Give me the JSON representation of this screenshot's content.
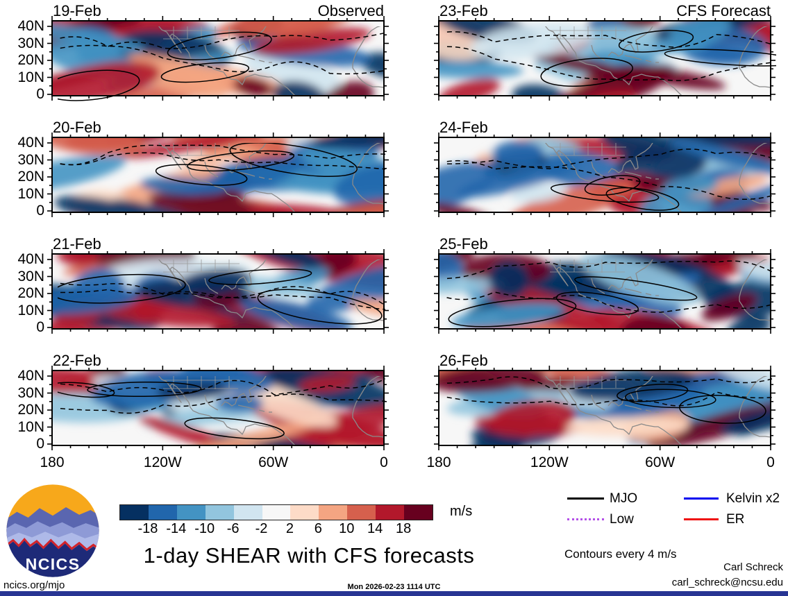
{
  "figure": {
    "panels": [
      {
        "date": "19-Feb",
        "source": "Observed"
      },
      {
        "date": "20-Feb",
        "source": "Observed"
      },
      {
        "date": "21-Feb",
        "source": "Observed"
      },
      {
        "date": "22-Feb",
        "source": "Observed"
      },
      {
        "date": "23-Feb",
        "source": "CFS Forecast"
      },
      {
        "date": "24-Feb",
        "source": "CFS Forecast"
      },
      {
        "date": "25-Feb",
        "source": "CFS Forecast"
      },
      {
        "date": "26-Feb",
        "source": "CFS Forecast"
      }
    ],
    "column_labels": {
      "observed": "Observed",
      "forecast": "CFS Forecast"
    },
    "y_tick_labels": [
      "40N",
      "30N",
      "20N",
      "10N",
      "0"
    ],
    "x_tick_labels": [
      "180",
      "120W",
      "60W",
      "0"
    ]
  },
  "chart_data": {
    "type": "heatmap",
    "title": "1-day SHEAR with CFS forecasts",
    "panel_grid": {
      "rows": 4,
      "cols": 2,
      "left_column": "Observed",
      "right_column": "CFS Forecast"
    },
    "panels": [
      {
        "date": "19-Feb",
        "source": "Observed"
      },
      {
        "date": "20-Feb",
        "source": "Observed"
      },
      {
        "date": "21-Feb",
        "source": "Observed"
      },
      {
        "date": "22-Feb",
        "source": "Observed"
      },
      {
        "date": "23-Feb",
        "source": "CFS Forecast"
      },
      {
        "date": "24-Feb",
        "source": "CFS Forecast"
      },
      {
        "date": "25-Feb",
        "source": "CFS Forecast"
      },
      {
        "date": "26-Feb",
        "source": "CFS Forecast"
      }
    ],
    "x_axis": {
      "tick_labels": [
        "180",
        "120W",
        "60W",
        "0"
      ],
      "range": [
        180,
        0
      ]
    },
    "y_axis": {
      "tick_labels": [
        "40N",
        "30N",
        "20N",
        "10N",
        "0"
      ],
      "range": [
        0,
        40
      ]
    },
    "colorbar": {
      "units": "m/s",
      "tick_labels": [
        -18,
        -14,
        -10,
        -6,
        -2,
        2,
        6,
        10,
        14,
        18
      ],
      "colors": [
        "#053061",
        "#2166ac",
        "#4393c3",
        "#92c5de",
        "#d1e5f0",
        "#f7f7f7",
        "#fddbc7",
        "#f4a582",
        "#d6604d",
        "#b2182b",
        "#67001f"
      ]
    },
    "contour_note": "Contours every 4 m/s",
    "legend": [
      {
        "label": "MJO",
        "color": "#000000",
        "style": "solid"
      },
      {
        "label": "Kelvin x2",
        "color": "#0000f0",
        "style": "solid"
      },
      {
        "label": "Low",
        "color": "#b44fe8",
        "style": "dotted"
      },
      {
        "label": "ER",
        "color": "#ee1111",
        "style": "solid"
      }
    ]
  },
  "footer": {
    "logo_text": "NCICS",
    "site": "ncics.org/mjo",
    "timestamp": "Mon 2026-02-23 1114 UTC",
    "author": "Carl Schreck",
    "email": "carl_schreck@ncsu.edu",
    "units_label": "m/s",
    "bottom_bar_color": "#283593",
    "logo_colors": {
      "sky": "#f7a81b",
      "navy": "#1e2a78",
      "ridge_red": "#d2232a"
    }
  }
}
